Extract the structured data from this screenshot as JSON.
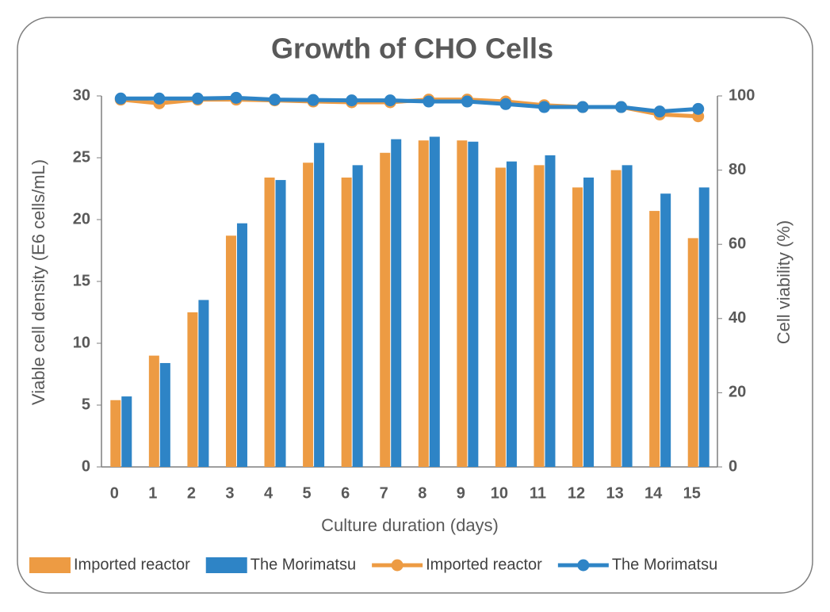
{
  "chart_data": {
    "type": "bar",
    "title": "Growth of CHO Cells",
    "x_label": "Culture duration (days)",
    "y_label": "Viable cell density (E6 cells/mL)",
    "y2_label": "Cell viability (%)",
    "categories": [
      "0",
      "1",
      "2",
      "3",
      "4",
      "5",
      "6",
      "7",
      "8",
      "9",
      "10",
      "11",
      "12",
      "13",
      "14",
      "15"
    ],
    "ylim": [
      0,
      30
    ],
    "yticks": [
      0,
      5,
      10,
      15,
      20,
      25,
      30
    ],
    "y2lim": [
      0,
      100
    ],
    "y2ticks": [
      0,
      20,
      40,
      60,
      80,
      100
    ],
    "legend": "bottom",
    "series": [
      {
        "name": "Imported reactor",
        "kind": "bar",
        "color": "#ed9b43",
        "values": [
          5.4,
          9.0,
          12.5,
          18.7,
          23.4,
          24.6,
          23.4,
          25.4,
          26.4,
          26.4,
          24.2,
          24.4,
          22.6,
          24.0,
          20.7,
          18.5
        ]
      },
      {
        "name": "The Morimatsu",
        "kind": "bar",
        "color": "#2e84c6",
        "values": [
          5.7,
          8.4,
          13.5,
          19.7,
          23.2,
          26.2,
          24.4,
          26.5,
          26.7,
          26.3,
          24.7,
          25.2,
          23.4,
          24.4,
          22.1,
          22.6
        ]
      },
      {
        "name": "Imported reactor",
        "kind": "line",
        "axis": "y2",
        "color": "#ed9b43",
        "values": [
          99,
          98,
          99,
          99,
          98.8,
          98.5,
          98.3,
          98.3,
          99,
          99,
          98.5,
          97.5,
          97,
          97,
          95,
          94.5
        ]
      },
      {
        "name": "The Morimatsu",
        "kind": "line",
        "axis": "y2",
        "color": "#2e84c6",
        "values": [
          99.3,
          99.3,
          99.3,
          99.5,
          99,
          98.9,
          98.8,
          98.8,
          98.5,
          98.5,
          97.8,
          97,
          97,
          97,
          95.8,
          96.5
        ]
      }
    ]
  }
}
